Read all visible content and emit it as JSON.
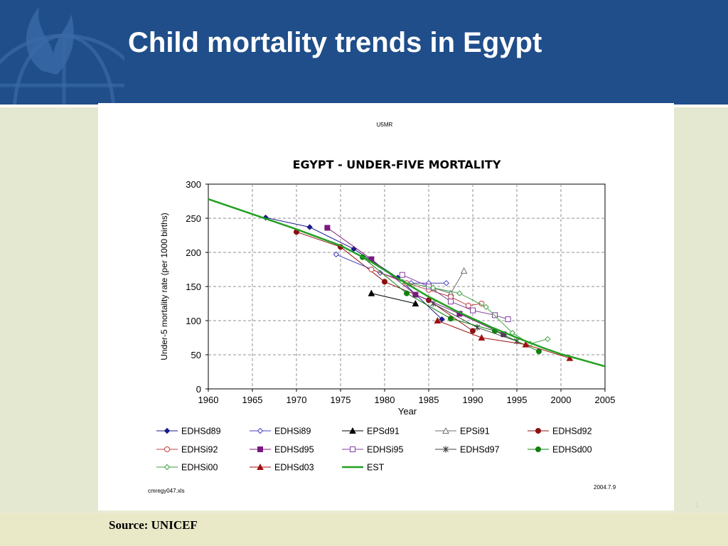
{
  "slide": {
    "title": "Child mortality trends in Egypt",
    "source": "Source: UNICEF",
    "page_number": "1"
  },
  "colors": {
    "header_bg": "#1f4e8a",
    "est_line": "#22a022",
    "grid": "#909090"
  },
  "chart_data": {
    "type": "line",
    "sheet_label": "U5MR",
    "title": "EGYPT - UNDER-FIVE MORTALITY",
    "xlabel": "Year",
    "ylabel": "Under-5 mortality rate (per 1000 births)",
    "xlim": [
      1960,
      2005
    ],
    "ylim": [
      0,
      300
    ],
    "x_ticks": [
      "1960",
      "1965",
      "1970",
      "1975",
      "1980",
      "1985",
      "1990",
      "1995",
      "2000",
      "2005"
    ],
    "y_ticks": [
      "300",
      "250",
      "200",
      "150",
      "100",
      "50",
      "0"
    ],
    "grid": true,
    "legend_position": "bottom",
    "file_note": "cmregy047.xls",
    "date_note": "2004.7.9",
    "series": [
      {
        "name": "EDHSd89",
        "color": "#1a1a8c",
        "marker": "diamond",
        "fill": true,
        "x": [
          1966.5,
          1971.5,
          1976.5,
          1981.5,
          1986.5
        ],
        "y": [
          251,
          237,
          205,
          163,
          102
        ]
      },
      {
        "name": "EDHSi89",
        "color": "#4040c0",
        "marker": "diamond",
        "fill": false,
        "x": [
          1974.5,
          1979.5,
          1983.0,
          1985.0,
          1987.0
        ],
        "y": [
          197,
          170,
          155,
          155,
          155
        ]
      },
      {
        "name": "EPSd91",
        "color": "#000000",
        "marker": "triangle",
        "fill": true,
        "x": [
          1978.5,
          1983.5
        ],
        "y": [
          140,
          125
        ]
      },
      {
        "name": "EPSi91",
        "color": "#707070",
        "marker": "triangle",
        "fill": false,
        "x": [
          1985.5,
          1987.5,
          1989.0
        ],
        "y": [
          148,
          140,
          173
        ]
      },
      {
        "name": "EDHSd92",
        "color": "#8b1010",
        "marker": "circle",
        "fill": true,
        "x": [
          1970.0,
          1975.0,
          1980.0,
          1985.0,
          1990.0
        ],
        "y": [
          230,
          208,
          157,
          130,
          85
        ]
      },
      {
        "name": "EDHSi92",
        "color": "#c04040",
        "marker": "circle",
        "fill": false,
        "x": [
          1978.5,
          1982.5,
          1985.0,
          1987.5,
          1989.5,
          1991.0
        ],
        "y": [
          175,
          155,
          145,
          135,
          122,
          125
        ]
      },
      {
        "name": "EDHSd95",
        "color": "#7b1880",
        "marker": "square",
        "fill": true,
        "x": [
          1973.5,
          1978.5,
          1983.5,
          1988.5,
          1993.5
        ],
        "y": [
          236,
          190,
          138,
          110,
          80
        ]
      },
      {
        "name": "EDHSi95",
        "color": "#8040a0",
        "marker": "square",
        "fill": false,
        "x": [
          1982.0,
          1985.0,
          1987.5,
          1990.0,
          1992.5,
          1994.0
        ],
        "y": [
          167,
          150,
          128,
          115,
          108,
          102
        ]
      },
      {
        "name": "EDHSd97",
        "color": "#404040",
        "marker": "star",
        "fill": false,
        "x": [
          1985.5,
          1990.5,
          1995.0
        ],
        "y": [
          125,
          90,
          70
        ]
      },
      {
        "name": "EDHSd00",
        "color": "#108010",
        "marker": "circle",
        "fill": true,
        "x": [
          1977.5,
          1982.5,
          1987.5,
          1992.5,
          1997.5
        ],
        "y": [
          193,
          140,
          103,
          85,
          55
        ]
      },
      {
        "name": "EDHSi00",
        "color": "#40a040",
        "marker": "diamond",
        "fill": false,
        "x": [
          1982.0,
          1985.5,
          1988.5,
          1991.5,
          1994.5,
          1996.5,
          1998.5
        ],
        "y": [
          157,
          148,
          140,
          120,
          82,
          66,
          73
        ]
      },
      {
        "name": "EDHSd03",
        "color": "#a01010",
        "marker": "triangle",
        "fill": true,
        "x": [
          1986.0,
          1991.0,
          1996.0,
          2001.0
        ],
        "y": [
          100,
          75,
          65,
          45
        ]
      },
      {
        "name": "EST",
        "color": "#22a022",
        "marker": "none",
        "fill": false,
        "width": 2.5,
        "x": [
          1960,
          1965,
          1970,
          1975,
          1978,
          1980,
          1982,
          1985,
          1988,
          1990,
          1992,
          1995,
          1998,
          2000,
          2002,
          2005
        ],
        "y": [
          278,
          256,
          234,
          210,
          190,
          174,
          158,
          135,
          115,
          103,
          91,
          75,
          60,
          51,
          44,
          33
        ]
      }
    ]
  }
}
